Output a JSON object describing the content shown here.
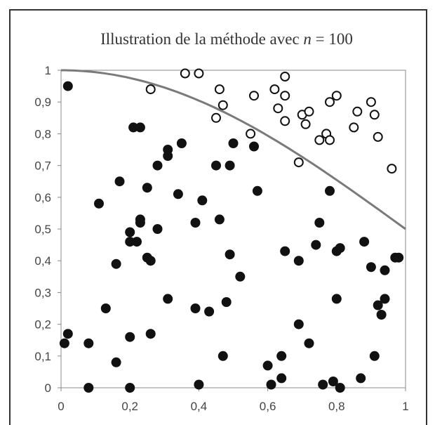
{
  "chart_data": {
    "type": "scatter",
    "title": {
      "prefix": "Illustration de la méthode avec ",
      "var": "n",
      "suffix": " = 100"
    },
    "xlabel": "",
    "ylabel": "",
    "xlim": [
      0,
      1
    ],
    "ylim": [
      0,
      1
    ],
    "x_ticks": [
      "0",
      "0,2",
      "0,4",
      "0,6",
      "0,8",
      "1"
    ],
    "y_ticks": [
      "0",
      "0,1",
      "0,2",
      "0,3",
      "0,4",
      "0,5",
      "0,6",
      "0,7",
      "0,8",
      "0,9",
      "1"
    ],
    "grid": false,
    "legend": "none",
    "colors": {
      "curve": "#7a7a7a",
      "points": "#111111",
      "frame": "#333333"
    },
    "curve": {
      "function": "cos(pi*x/4)^2",
      "x_range": [
        0,
        1
      ]
    },
    "series": [
      {
        "marker": "filled",
        "points": [
          [
            0.02,
            0.95
          ],
          [
            0.21,
            0.82
          ],
          [
            0.23,
            0.82
          ],
          [
            0.17,
            0.65
          ],
          [
            0.11,
            0.58
          ],
          [
            0.35,
            0.77
          ],
          [
            0.31,
            0.75
          ],
          [
            0.31,
            0.73
          ],
          [
            0.28,
            0.7
          ],
          [
            0.34,
            0.61
          ],
          [
            0.25,
            0.63
          ],
          [
            0.23,
            0.53
          ],
          [
            0.23,
            0.52
          ],
          [
            0.2,
            0.49
          ],
          [
            0.28,
            0.5
          ],
          [
            0.22,
            0.46
          ],
          [
            0.2,
            0.46
          ],
          [
            0.16,
            0.39
          ],
          [
            0.25,
            0.41
          ],
          [
            0.26,
            0.4
          ],
          [
            0.13,
            0.25
          ],
          [
            0.31,
            0.28
          ],
          [
            0.39,
            0.52
          ],
          [
            0.41,
            0.59
          ],
          [
            0.45,
            0.7
          ],
          [
            0.49,
            0.7
          ],
          [
            0.5,
            0.77
          ],
          [
            0.56,
            0.76
          ],
          [
            0.57,
            0.62
          ],
          [
            0.46,
            0.53
          ],
          [
            0.49,
            0.42
          ],
          [
            0.52,
            0.35
          ],
          [
            0.39,
            0.25
          ],
          [
            0.43,
            0.24
          ],
          [
            0.48,
            0.27
          ],
          [
            0.47,
            0.1
          ],
          [
            0.26,
            0.17
          ],
          [
            0.2,
            0.16
          ],
          [
            0.16,
            0.08
          ],
          [
            0.08,
            0.14
          ],
          [
            0.01,
            0.14
          ],
          [
            0.02,
            0.17
          ],
          [
            0.08,
            0.0
          ],
          [
            0.2,
            0.0
          ],
          [
            0.4,
            0.01
          ],
          [
            0.6,
            0.07
          ],
          [
            0.61,
            0.01
          ],
          [
            0.64,
            0.03
          ],
          [
            0.64,
            0.1
          ],
          [
            0.65,
            0.43
          ],
          [
            0.69,
            0.4
          ],
          [
            0.69,
            0.2
          ],
          [
            0.72,
            0.14
          ],
          [
            0.74,
            0.45
          ],
          [
            0.75,
            0.52
          ],
          [
            0.78,
            0.62
          ],
          [
            0.8,
            0.43
          ],
          [
            0.81,
            0.44
          ],
          [
            0.8,
            0.28
          ],
          [
            0.76,
            0.01
          ],
          [
            0.79,
            0.02
          ],
          [
            0.81,
            0.0
          ],
          [
            0.87,
            0.03
          ],
          [
            0.88,
            0.46
          ],
          [
            0.9,
            0.38
          ],
          [
            0.91,
            0.1
          ],
          [
            0.92,
            0.26
          ],
          [
            0.93,
            0.23
          ],
          [
            0.94,
            0.28
          ],
          [
            0.94,
            0.37
          ],
          [
            0.97,
            0.41
          ],
          [
            0.98,
            0.41
          ]
        ]
      },
      {
        "marker": "open",
        "points": [
          [
            0.26,
            0.94
          ],
          [
            0.36,
            0.99
          ],
          [
            0.4,
            0.99
          ],
          [
            0.45,
            0.85
          ],
          [
            0.46,
            0.94
          ],
          [
            0.47,
            0.89
          ],
          [
            0.55,
            0.8
          ],
          [
            0.56,
            0.92
          ],
          [
            0.62,
            0.94
          ],
          [
            0.63,
            0.88
          ],
          [
            0.65,
            0.84
          ],
          [
            0.65,
            0.92
          ],
          [
            0.65,
            0.98
          ],
          [
            0.69,
            0.71
          ],
          [
            0.7,
            0.86
          ],
          [
            0.71,
            0.83
          ],
          [
            0.72,
            0.87
          ],
          [
            0.75,
            0.78
          ],
          [
            0.77,
            0.8
          ],
          [
            0.78,
            0.78
          ],
          [
            0.78,
            0.9
          ],
          [
            0.8,
            0.92
          ],
          [
            0.85,
            0.82
          ],
          [
            0.86,
            0.87
          ],
          [
            0.9,
            0.9
          ],
          [
            0.91,
            0.86
          ],
          [
            0.92,
            0.79
          ],
          [
            0.96,
            0.69
          ]
        ]
      }
    ]
  }
}
